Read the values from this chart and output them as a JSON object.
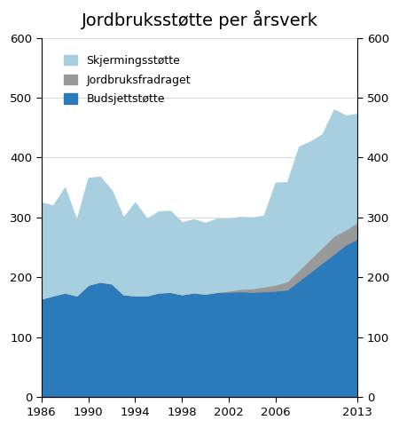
{
  "title": "Jordbruksstøtte per årsverk",
  "years": [
    1986,
    1987,
    1988,
    1989,
    1990,
    1991,
    1992,
    1993,
    1994,
    1995,
    1996,
    1997,
    1998,
    1999,
    2000,
    2001,
    2002,
    2003,
    2004,
    2005,
    2006,
    2007,
    2008,
    2009,
    2010,
    2011,
    2012,
    2013
  ],
  "budsjettstotte": [
    165,
    170,
    175,
    170,
    188,
    193,
    190,
    172,
    170,
    170,
    175,
    176,
    172,
    175,
    173,
    176,
    176,
    177,
    176,
    177,
    178,
    180,
    195,
    210,
    225,
    240,
    255,
    265
  ],
  "jordbruksfradraget": [
    0,
    0,
    0,
    0,
    0,
    0,
    0,
    0,
    0,
    0,
    0,
    0,
    0,
    0,
    0,
    0,
    2,
    4,
    6,
    8,
    10,
    14,
    18,
    22,
    26,
    30,
    25,
    28
  ],
  "skjermingsstotte": [
    160,
    150,
    175,
    125,
    178,
    175,
    155,
    128,
    155,
    128,
    135,
    135,
    120,
    122,
    118,
    122,
    120,
    120,
    118,
    118,
    170,
    165,
    205,
    195,
    188,
    210,
    190,
    180
  ],
  "ylim": [
    0,
    600
  ],
  "yticks": [
    0,
    100,
    200,
    300,
    400,
    500,
    600
  ],
  "xticks": [
    1986,
    1990,
    1994,
    1998,
    2002,
    2006,
    2013
  ],
  "color_skjermingsstotte": "#a8cfe0",
  "color_jordbruksfradraget": "#999999",
  "color_budsjettstotte": "#2b7bba",
  "background_color": "#ffffff",
  "legend_labels": [
    "Skjermingsstøtte",
    "Jordbruksfradraget",
    "Budsjettstøtte"
  ],
  "title_fontsize": 14
}
